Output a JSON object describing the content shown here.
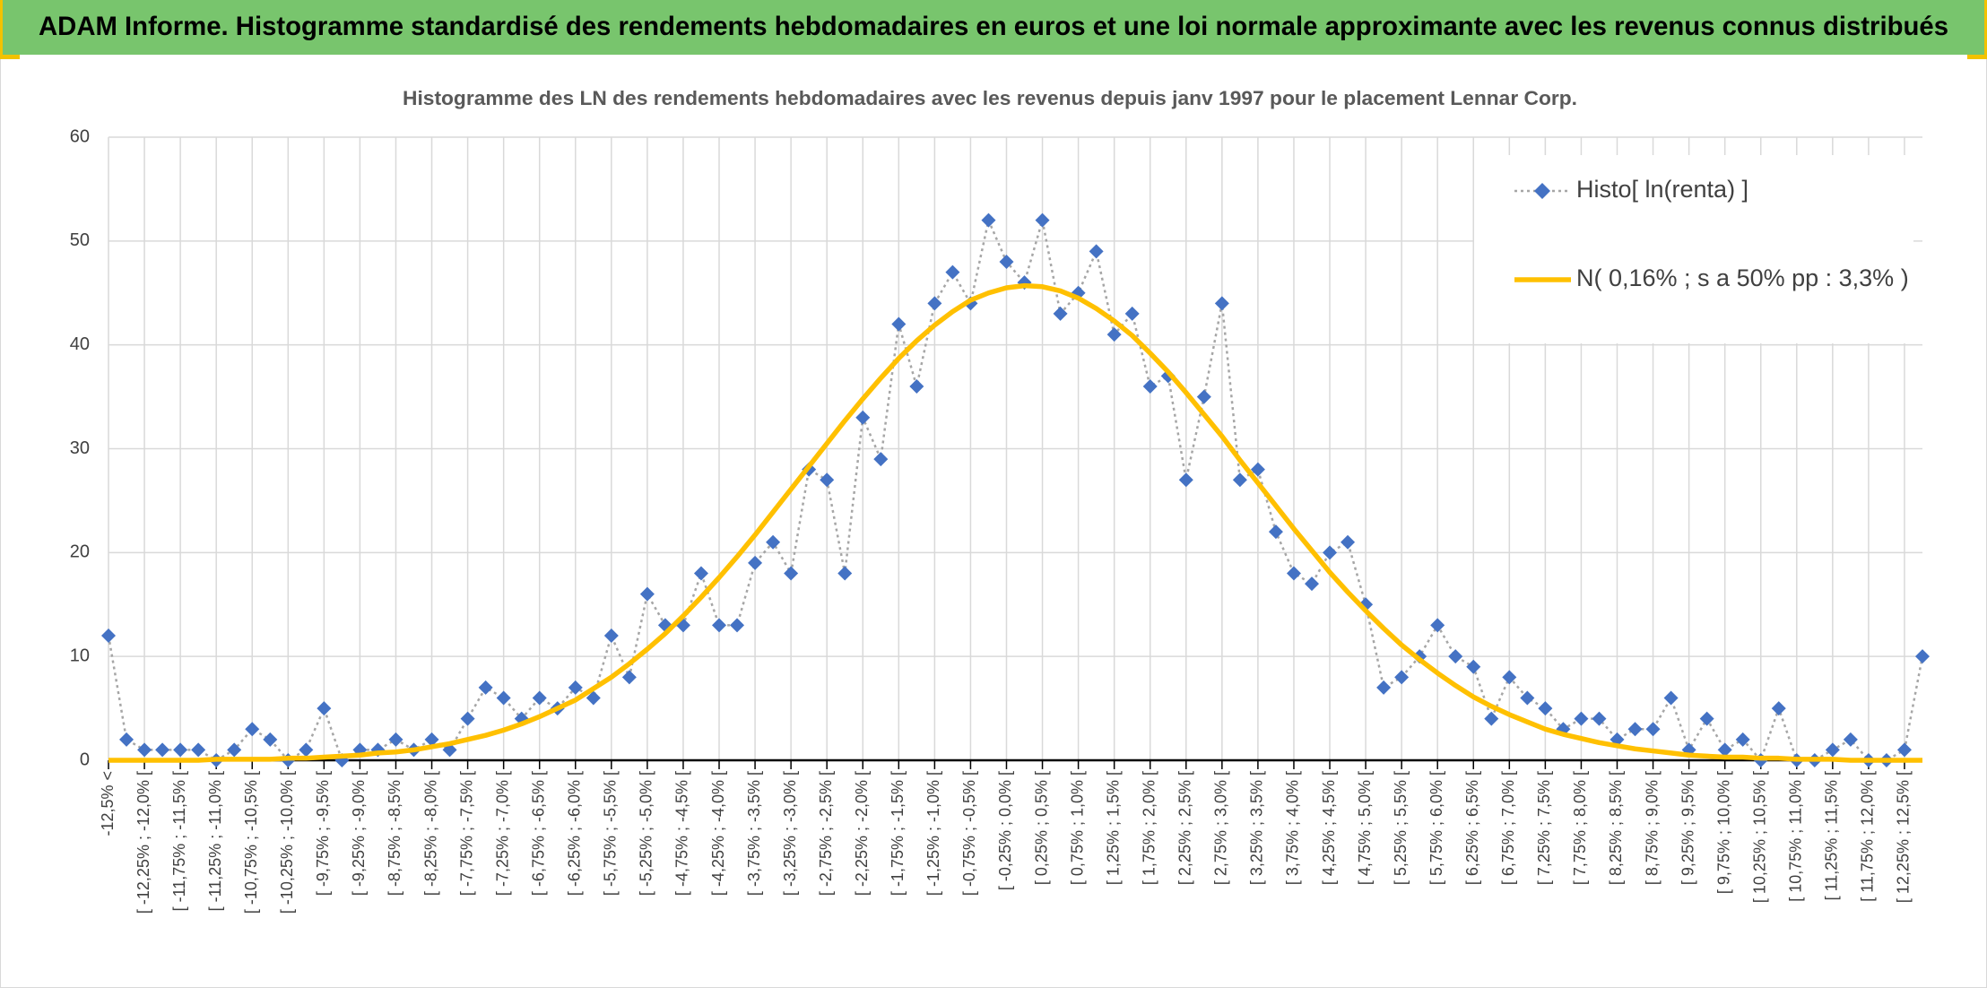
{
  "chart_data": {
    "type": "line",
    "title": "ADAM Informe. Histogramme standardisé des rendements hebdomadaires en euros et une loi normale approximante avec les revenus connus distribués",
    "subtitle": "Histogramme des LN des rendements hebdomadaires avec les revenus depuis janv 1997 pour le placement Lennar Corp.",
    "categories": [
      "-12,5% <",
      null,
      "[ -12,25% ; -12,0% [",
      null,
      "[ -11,75% ; -11,5% [",
      null,
      "[ -11,25% ; -11,0% [",
      null,
      "[ -10,75% ; -10,5% [",
      null,
      "[ -10,25% ; -10,0% [",
      null,
      "[ -9,75% ; -9,5% [",
      null,
      "[ -9,25% ; -9,0% [",
      null,
      "[ -8,75% ; -8,5% [",
      null,
      "[ -8,25% ; -8,0% [",
      null,
      "[ -7,75% ; -7,5% [",
      null,
      "[ -7,25% ; -7,0% [",
      null,
      "[ -6,75% ; -6,5% [",
      null,
      "[ -6,25% ; -6,0% [",
      null,
      "[ -5,75% ; -5,5% [",
      null,
      "[ -5,25% ; -5,0% [",
      null,
      "[ -4,75% ; -4,5% [",
      null,
      "[ -4,25% ; -4,0% [",
      null,
      "[ -3,75% ; -3,5% [",
      null,
      "[ -3,25% ; -3,0% [",
      null,
      "[ -2,75% ; -2,5% [",
      null,
      "[ -2,25% ; -2,0% [",
      null,
      "[ -1,75% ; -1,5% [",
      null,
      "[ -1,25% ; -1,0% [",
      null,
      "[ -0,75% ; -0,5% [",
      null,
      "[ -0,25% ; 0,0% [",
      null,
      "[ 0,25% ; 0,5% [",
      null,
      "[ 0,75% ; 1,0% [",
      null,
      "[ 1,25% ; 1,5% [",
      null,
      "[ 1,75% ; 2,0% [",
      null,
      "[ 2,25% ; 2,5% [",
      null,
      "[ 2,75% ; 3,0% [",
      null,
      "[ 3,25% ; 3,5% [",
      null,
      "[ 3,75% ; 4,0% [",
      null,
      "[ 4,25% ; 4,5% [",
      null,
      "[ 4,75% ; 5,0% [",
      null,
      "[ 5,25% ; 5,5% [",
      null,
      "[ 5,75% ; 6,0% [",
      null,
      "[ 6,25% ; 6,5% [",
      null,
      "[ 6,75% ; 7,0% [",
      null,
      "[ 7,25% ; 7,5% [",
      null,
      "[ 7,75% ; 8,0% [",
      null,
      "[ 8,25% ; 8,5% [",
      null,
      "[ 8,75% ; 9,0% [",
      null,
      "[ 9,25% ; 9,5% [",
      null,
      "[ 9,75% ; 10,0% [",
      null,
      "[ 10,25% ; 10,5% [",
      null,
      "[ 10,75% ; 11,0% [",
      null,
      "[ 11,25% ; 11,5% [",
      null,
      "[ 11,75% ; 12,0% [",
      null,
      "[ 12,25% ; 12,5% [",
      null
    ],
    "series": [
      {
        "name": "Histo[ ln(renta) ]",
        "color": "#4472c4",
        "line_color": "#a6a6a6",
        "line_style": "dotted",
        "marker": "diamond",
        "values": [
          12,
          2,
          1,
          1,
          1,
          1,
          0,
          1,
          3,
          2,
          0,
          1,
          5,
          0,
          1,
          1,
          2,
          1,
          2,
          1,
          4,
          7,
          6,
          4,
          6,
          5,
          7,
          6,
          12,
          8,
          16,
          13,
          13,
          18,
          13,
          13,
          19,
          21,
          18,
          28,
          27,
          18,
          33,
          29,
          42,
          36,
          44,
          47,
          44,
          52,
          48,
          46,
          52,
          43,
          45,
          49,
          41,
          43,
          36,
          37,
          27,
          35,
          44,
          27,
          28,
          22,
          18,
          17,
          20,
          21,
          15,
          7,
          8,
          10,
          13,
          10,
          9,
          4,
          8,
          6,
          5,
          3,
          4,
          4,
          2,
          3,
          3,
          6,
          1,
          4,
          1,
          2,
          0,
          5,
          0,
          0,
          1,
          2,
          0,
          0,
          1,
          10
        ]
      },
      {
        "name": "N( 0,16% ; s a 50% pp : 3,3% )",
        "color": "#ffc000",
        "line_style": "solid",
        "marker": "none",
        "values": [
          0,
          0,
          0,
          0,
          0,
          0,
          0.1,
          0.1,
          0.1,
          0.1,
          0.2,
          0.2,
          0.3,
          0.4,
          0.5,
          0.7,
          0.8,
          1.0,
          1.3,
          1.6,
          2.0,
          2.4,
          2.9,
          3.5,
          4.2,
          5.0,
          5.8,
          6.9,
          8.0,
          9.3,
          10.7,
          12.2,
          13.9,
          15.7,
          17.6,
          19.6,
          21.7,
          23.9,
          26.1,
          28.3,
          30.5,
          32.7,
          34.8,
          36.8,
          38.7,
          40.4,
          41.9,
          43.2,
          44.3,
          45.0,
          45.5,
          45.7,
          45.6,
          45.2,
          44.5,
          43.5,
          42.3,
          40.9,
          39.2,
          37.4,
          35.4,
          33.3,
          31.2,
          28.9,
          26.7,
          24.5,
          22.3,
          20.2,
          18.1,
          16.2,
          14.4,
          12.7,
          11.1,
          9.7,
          8.4,
          7.2,
          6.1,
          5.2,
          4.4,
          3.7,
          3.0,
          2.5,
          2.1,
          1.7,
          1.4,
          1.1,
          0.9,
          0.7,
          0.5,
          0.4,
          0.3,
          0.3,
          0.2,
          0.2,
          0.1,
          0.1,
          0.1,
          0,
          0,
          0,
          0,
          0
        ]
      }
    ],
    "ylim": [
      0,
      60
    ],
    "yticks": [
      0,
      10,
      20,
      30,
      40,
      50,
      60
    ],
    "grid": true,
    "legend": "upper right"
  }
}
